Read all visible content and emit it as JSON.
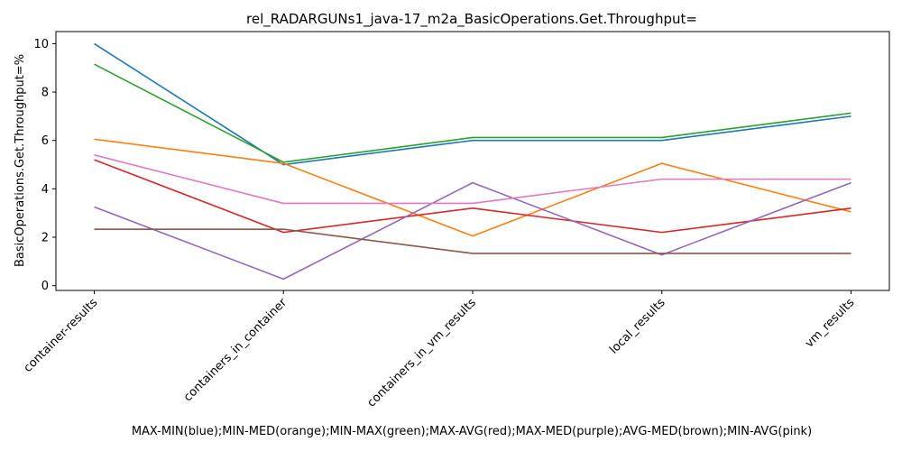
{
  "chart_data": {
    "type": "line",
    "title": "rel_RADARGUNs1_java-17_m2a_BasicOperations.Get.Throughput=",
    "xlabel": "MAX-MIN(blue);MIN-MED(orange);MIN-MAX(green);MAX-AVG(red);MAX-MED(purple);AVG-MED(brown);MIN-AVG(pink)",
    "ylabel": "BasicOperations.Get.Throughput=%",
    "categories": [
      "container-results",
      "containers_in_container",
      "containers_in_vm_results",
      "local_results",
      "vm_results"
    ],
    "ylim": [
      -0.2,
      10.5
    ],
    "yticks": [
      0,
      2,
      4,
      6,
      8,
      10
    ],
    "grid": false,
    "series": [
      {
        "color": "#1f77b4",
        "values": [
          10.0,
          5.0,
          6.0,
          6.0,
          7.0
        ]
      },
      {
        "color": "#ff7f0e",
        "values": [
          6.05,
          5.05,
          2.05,
          5.05,
          3.05
        ]
      },
      {
        "color": "#2ca02c",
        "values": [
          9.15,
          5.1,
          6.12,
          6.12,
          7.13
        ]
      },
      {
        "color": "#d62728",
        "values": [
          5.2,
          2.2,
          3.2,
          2.2,
          3.2
        ]
      },
      {
        "color": "#9467bd",
        "values": [
          3.25,
          0.27,
          4.25,
          1.27,
          4.25
        ]
      },
      {
        "color": "#8c564b",
        "values": [
          2.33,
          2.33,
          1.33,
          1.33,
          1.33
        ]
      },
      {
        "color": "#e377c2",
        "values": [
          5.4,
          3.4,
          3.4,
          4.4,
          4.4
        ]
      }
    ]
  }
}
